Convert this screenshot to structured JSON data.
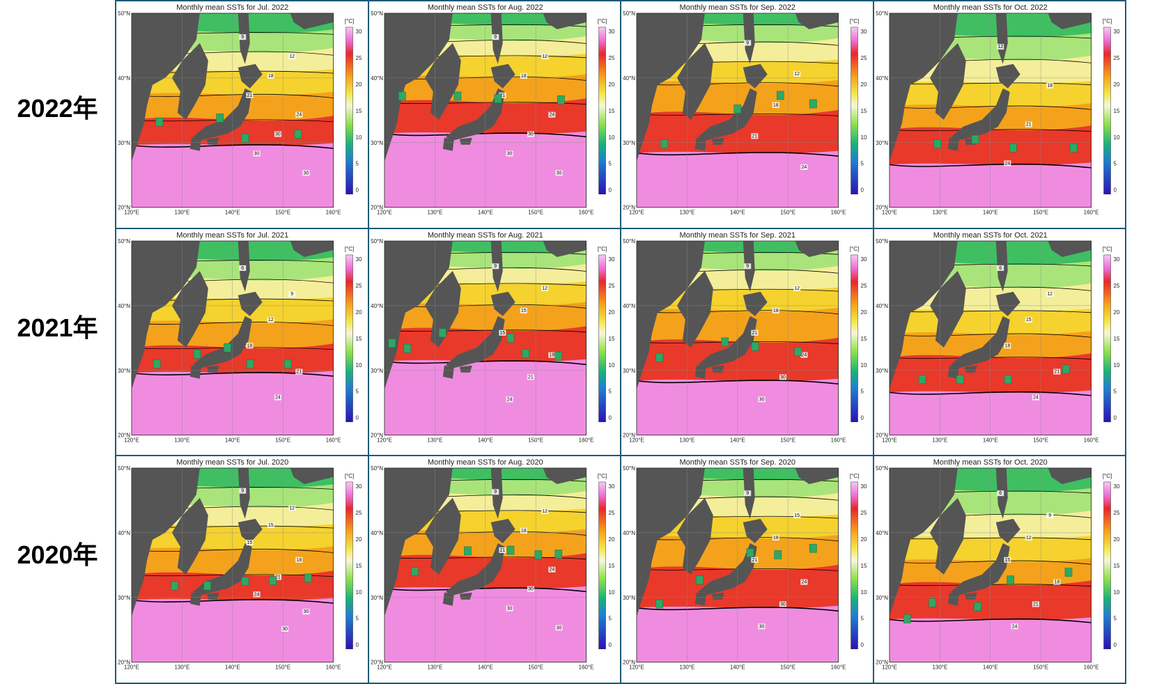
{
  "year_labels": [
    "2022年",
    "2021年",
    "2020年"
  ],
  "unit_label": "[°C]",
  "colorbar_ticks": [
    "30",
    "25",
    "20",
    "15",
    "10",
    "5",
    "0"
  ],
  "lat_ticks": [
    "50°N",
    "40°N",
    "30°N",
    "20°N"
  ],
  "lon_ticks": [
    "120°E",
    "130°E",
    "140°E",
    "150°E",
    "160°E"
  ],
  "colors": {
    "land": "#555555",
    "frame": "#1d5a78",
    "marker": "#2fa866",
    "isotherm": "#000000"
  },
  "panels": [
    {
      "title": "Monthly mean SSTs for Jul. 2022",
      "month": "Jul",
      "year": 2022,
      "contour_labels": [
        "9",
        "12",
        "18",
        "21",
        "24",
        "30",
        "30",
        "30"
      ],
      "markers_lonlat": [
        [
          125.5,
          33.2
        ],
        [
          137.5,
          33.8
        ],
        [
          142.5,
          30.7
        ],
        [
          153,
          31.3
        ]
      ]
    },
    {
      "title": "Monthly mean SSTs for Aug. 2022",
      "month": "Aug",
      "year": 2022,
      "contour_labels": [
        "9",
        "12",
        "18",
        "21",
        "24",
        "30",
        "30",
        "30"
      ],
      "markers_lonlat": [
        [
          123.5,
          37.2
        ],
        [
          134.5,
          37.2
        ],
        [
          142.5,
          36.8
        ],
        [
          155,
          36.6
        ]
      ]
    },
    {
      "title": "Monthly mean SSTs for Sep. 2022",
      "month": "Sep",
      "year": 2022,
      "contour_labels": [
        "9",
        "12",
        "18",
        "21",
        "24"
      ],
      "markers_lonlat": [
        [
          125.5,
          29.8
        ],
        [
          140,
          35.2
        ],
        [
          148.5,
          37.3
        ],
        [
          155,
          36
        ]
      ]
    },
    {
      "title": "Monthly mean SSTs for Oct. 2022",
      "month": "Oct",
      "year": 2022,
      "contour_labels": [
        "12",
        "18",
        "21",
        "24"
      ],
      "markers_lonlat": [
        [
          129.5,
          29.8
        ],
        [
          137,
          30.5
        ],
        [
          144.5,
          29.2
        ],
        [
          156.5,
          29.2
        ]
      ]
    },
    {
      "title": "Monthly mean SSTs for Jul. 2021",
      "month": "Jul",
      "year": 2021,
      "contour_labels": [
        "6",
        "9",
        "12",
        "18",
        "21",
        "24"
      ],
      "markers_lonlat": [
        [
          125,
          31
        ],
        [
          133,
          32.5
        ],
        [
          139,
          33.5
        ],
        [
          143.5,
          31
        ],
        [
          151,
          31
        ]
      ]
    },
    {
      "title": "Monthly mean SSTs for Aug. 2021",
      "month": "Aug",
      "year": 2021,
      "contour_labels": [
        "9",
        "12",
        "15",
        "15",
        "18",
        "21",
        "24"
      ],
      "markers_lonlat": [
        [
          121.5,
          34.2
        ],
        [
          124.5,
          33.4
        ],
        [
          131.5,
          35.8
        ],
        [
          145,
          35
        ],
        [
          148,
          32.6
        ],
        [
          154.5,
          32.2
        ]
      ]
    },
    {
      "title": "Monthly mean SSTs for Sep. 2021",
      "month": "Sep",
      "year": 2021,
      "contour_labels": [
        "9",
        "12",
        "18",
        "21",
        "24",
        "30",
        "30"
      ],
      "markers_lonlat": [
        [
          124.5,
          32
        ],
        [
          137.5,
          34.4
        ],
        [
          143.5,
          33.7
        ],
        [
          152,
          32.9
        ]
      ]
    },
    {
      "title": "Monthly mean SSTs for Oct. 2021",
      "month": "Oct",
      "year": 2021,
      "contour_labels": [
        "6",
        "12",
        "15",
        "18",
        "21",
        "24"
      ],
      "markers_lonlat": [
        [
          126.5,
          28.6
        ],
        [
          134,
          28.6
        ],
        [
          143.5,
          28.6
        ],
        [
          155,
          30.2
        ]
      ]
    },
    {
      "title": "Monthly mean SSTs for Jul. 2020",
      "month": "Jul",
      "year": 2020,
      "contour_labels": [
        "9",
        "12",
        "15",
        "15",
        "18",
        "21",
        "24",
        "30",
        "30"
      ],
      "markers_lonlat": [
        [
          128.5,
          31.8
        ],
        [
          135,
          31.8
        ],
        [
          142.5,
          32.5
        ],
        [
          148,
          32.6
        ],
        [
          155,
          33
        ]
      ]
    },
    {
      "title": "Monthly mean SSTs for Aug. 2020",
      "month": "Aug",
      "year": 2020,
      "contour_labels": [
        "9",
        "12",
        "18",
        "21",
        "24",
        "30",
        "30",
        "30"
      ],
      "markers_lonlat": [
        [
          126,
          34
        ],
        [
          136.5,
          37.2
        ],
        [
          145,
          37.3
        ],
        [
          150.5,
          36.6
        ],
        [
          154.5,
          36.7
        ]
      ]
    },
    {
      "title": "Monthly mean SSTs for Sep. 2020",
      "month": "Sep",
      "year": 2020,
      "contour_labels": [
        "9",
        "15",
        "18",
        "21",
        "24",
        "30",
        "30"
      ],
      "markers_lonlat": [
        [
          124.5,
          29
        ],
        [
          132.5,
          32.7
        ],
        [
          142.5,
          36.9
        ],
        [
          148,
          36.6
        ],
        [
          155,
          37.6
        ]
      ]
    },
    {
      "title": "Monthly mean SSTs for Oct. 2020",
      "month": "Oct",
      "year": 2020,
      "contour_labels": [
        "6",
        "9",
        "12",
        "15",
        "18",
        "21",
        "24"
      ],
      "markers_lonlat": [
        [
          123.5,
          26.7
        ],
        [
          128.5,
          29.2
        ],
        [
          137.5,
          28.6
        ],
        [
          144,
          32.7
        ],
        [
          155.5,
          33.9
        ]
      ]
    }
  ]
}
